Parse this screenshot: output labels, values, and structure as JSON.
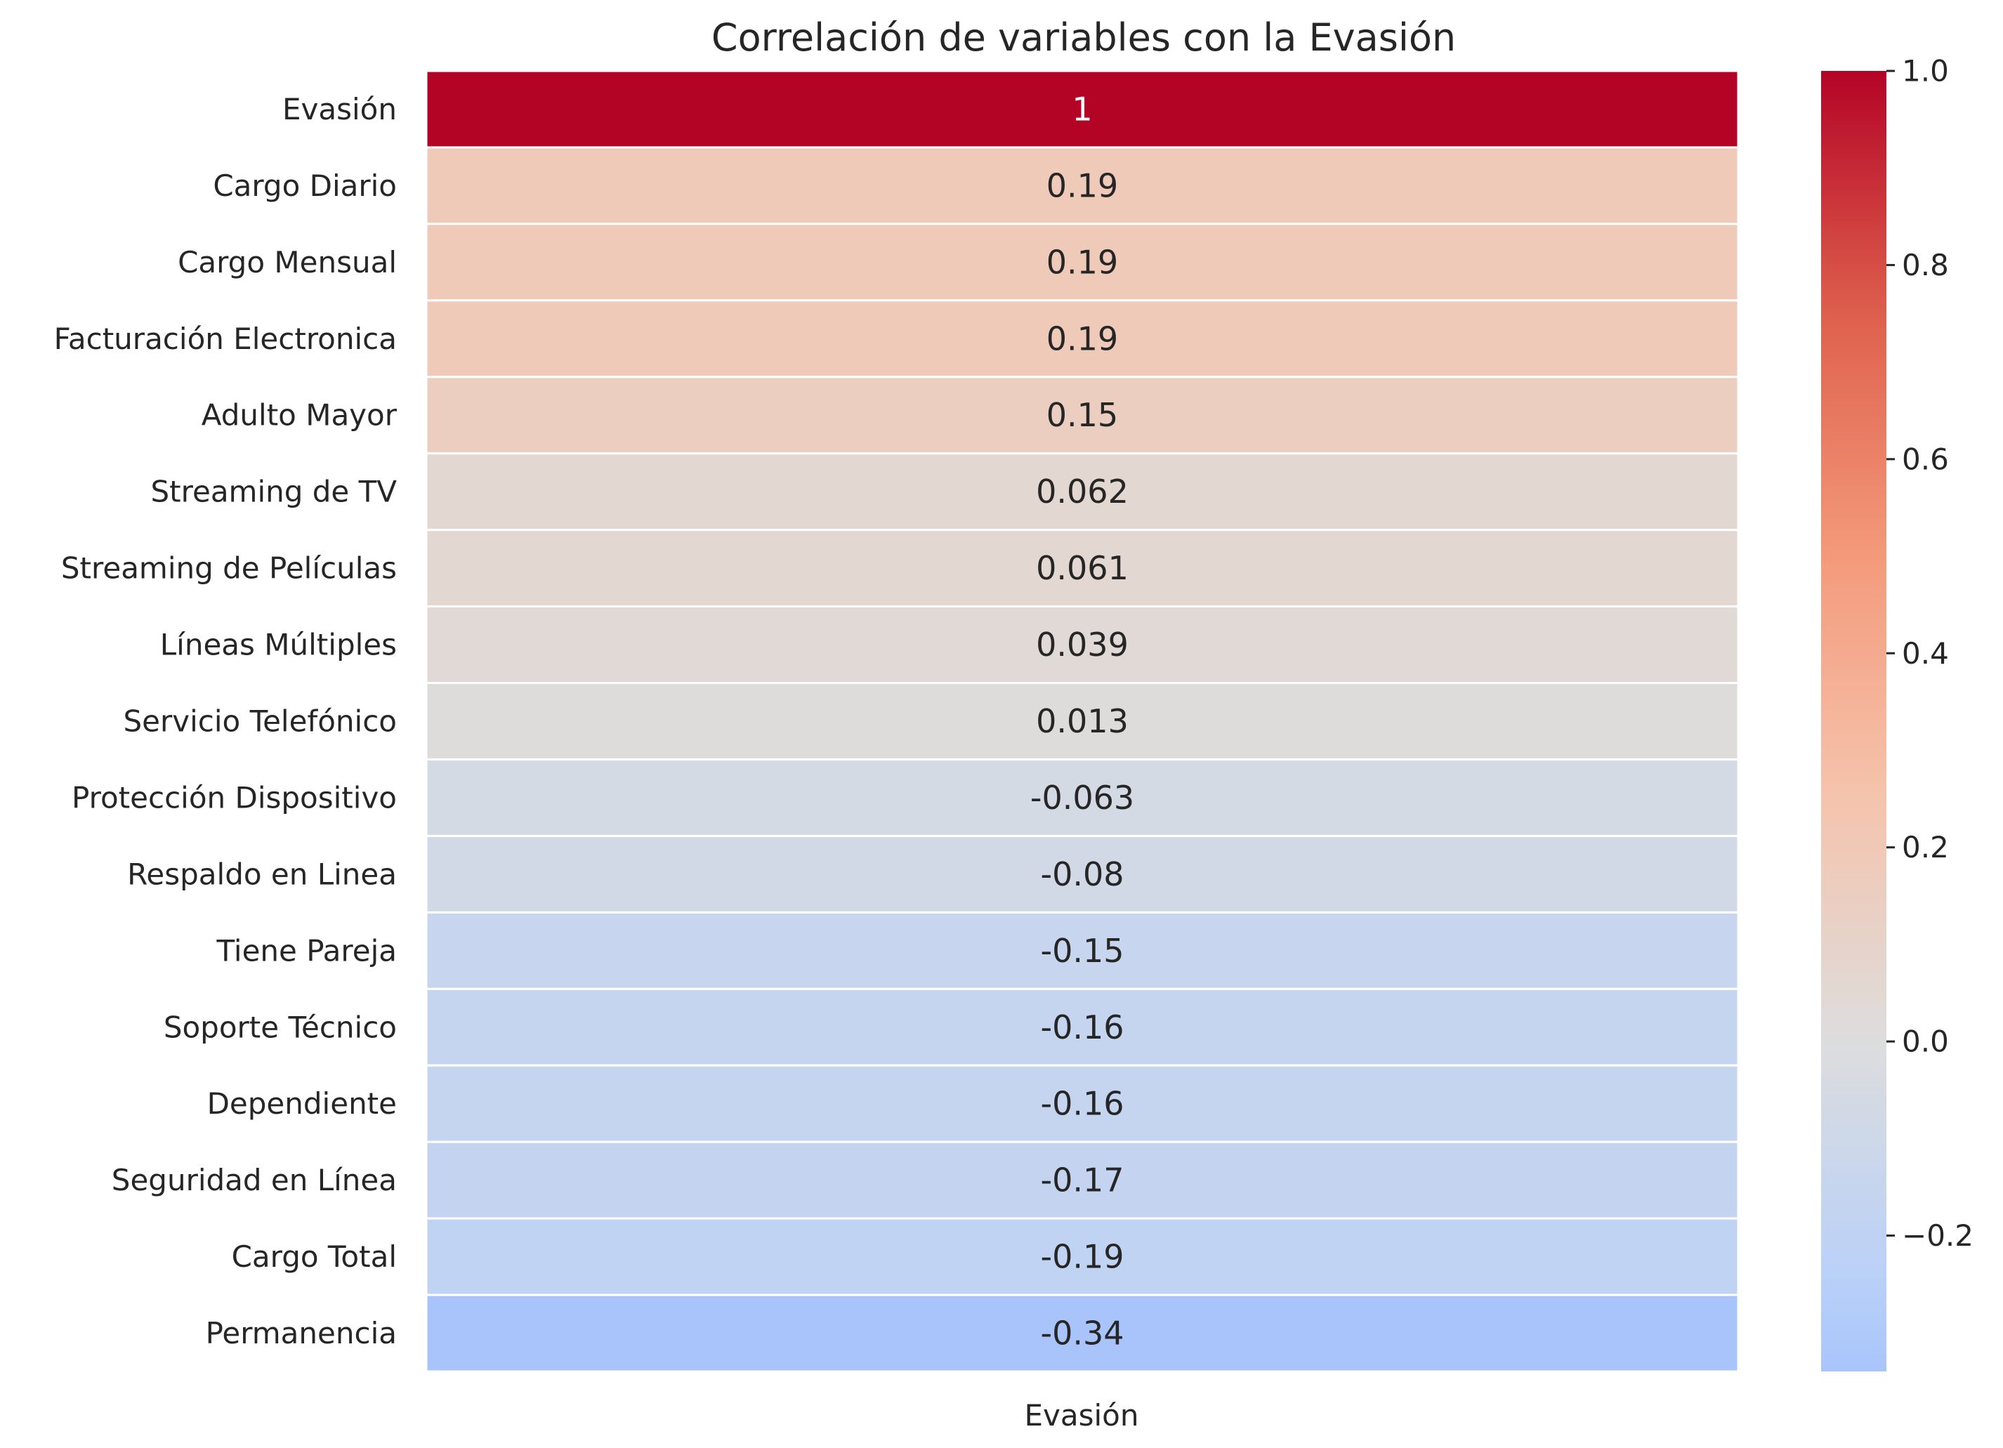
{
  "chart_data": {
    "type": "heatmap",
    "title": "Correlación de variables con la Evasión",
    "columns": [
      "Evasión"
    ],
    "rows": [
      "Evasión",
      "Cargo Diario",
      "Cargo Mensual",
      "Facturación Electronica",
      "Adulto Mayor",
      "Streaming de TV",
      "Streaming de Películas",
      "Líneas Múltiples",
      "Servicio Telefónico",
      "Protección Dispositivo",
      "Respaldo en Linea",
      "Tiene Pareja",
      "Soporte Técnico",
      "Dependiente",
      "Seguridad en Línea",
      "Cargo Total",
      "Permanencia"
    ],
    "values": [
      1,
      0.19,
      0.19,
      0.19,
      0.15,
      0.062,
      0.061,
      0.039,
      0.013,
      -0.063,
      -0.08,
      -0.15,
      -0.16,
      -0.16,
      -0.17,
      -0.19,
      -0.34
    ],
    "value_labels": [
      "1",
      "0.19",
      "0.19",
      "0.19",
      "0.15",
      "0.062",
      "0.061",
      "0.039",
      "0.013",
      "-0.063",
      "-0.08",
      "-0.15",
      "-0.16",
      "-0.16",
      "-0.17",
      "-0.19",
      "-0.34"
    ],
    "colormap": "coolwarm",
    "color_range": [
      -0.34,
      1.0
    ],
    "colorbar_ticks": [
      1.0,
      0.8,
      0.6,
      0.4,
      0.2,
      0.0,
      -0.2
    ],
    "colorbar_tick_labels": [
      "1.0",
      "0.8",
      "0.6",
      "0.4",
      "0.2",
      "0.0",
      "−0.2"
    ],
    "annotated": true,
    "legend": "colorbar-right"
  }
}
